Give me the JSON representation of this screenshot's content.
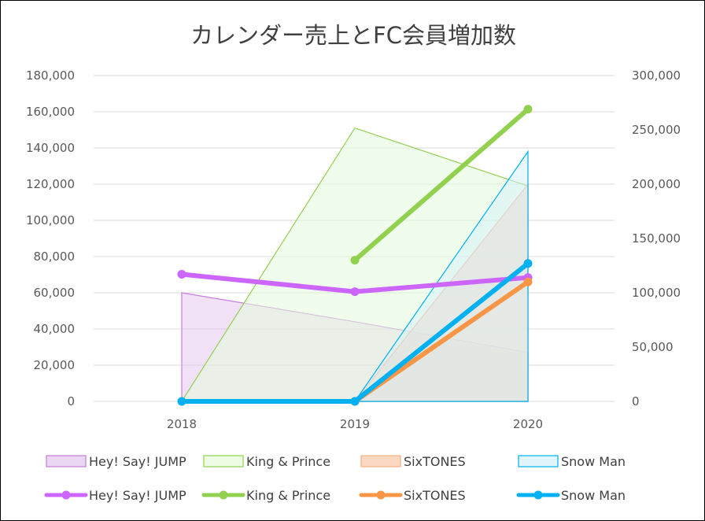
{
  "chart_data": {
    "type": "area+line",
    "title": "カレンダー売上とFC会員増加数",
    "categories": [
      "2018",
      "2019",
      "2020"
    ],
    "y_left": {
      "min": 0,
      "max": 180000,
      "step": 20000,
      "ticks": [
        "0",
        "20,000",
        "40,000",
        "60,000",
        "80,000",
        "100,000",
        "120,000",
        "140,000",
        "160,000",
        "180,000"
      ]
    },
    "y_right": {
      "min": 0,
      "max": 300000,
      "step": 50000,
      "ticks": [
        "0",
        "50,000",
        "100,000",
        "150,000",
        "200,000",
        "250,000",
        "300,000"
      ]
    },
    "grid": true,
    "legend_position": "bottom",
    "area_series": [
      {
        "name": "Hey! Say! JUMP",
        "axis": "left",
        "values": [
          60000,
          44000,
          27000
        ],
        "fill": "#e3c9f0",
        "stroke": "#c77ddb"
      },
      {
        "name": "King & Prince",
        "axis": "left",
        "values": [
          0,
          151000,
          119000
        ],
        "fill": "#e6fbdc",
        "stroke": "#92d050"
      },
      {
        "name": "SixTONES",
        "axis": "left",
        "values": [
          0,
          0,
          120000
        ],
        "fill": "#f8cbad",
        "stroke": "#f4b183"
      },
      {
        "name": "Snow Man",
        "axis": "left",
        "values": [
          0,
          0,
          138000
        ],
        "fill": "#d5f1fb",
        "stroke": "#00b0f0"
      }
    ],
    "line_series": [
      {
        "name": "Hey! Say! JUMP",
        "axis": "right",
        "values": [
          117000,
          101000,
          114000
        ],
        "color": "#cc66ff"
      },
      {
        "name": "King & Prince",
        "axis": "right",
        "values": [
          null,
          130000,
          269000
        ],
        "color": "#92d050"
      },
      {
        "name": "SixTONES",
        "axis": "right",
        "values": [
          null,
          0,
          110000
        ],
        "color": "#f79646"
      },
      {
        "name": "Snow Man",
        "axis": "right",
        "values": [
          0,
          0,
          127000
        ],
        "color": "#00b0f0"
      }
    ]
  }
}
